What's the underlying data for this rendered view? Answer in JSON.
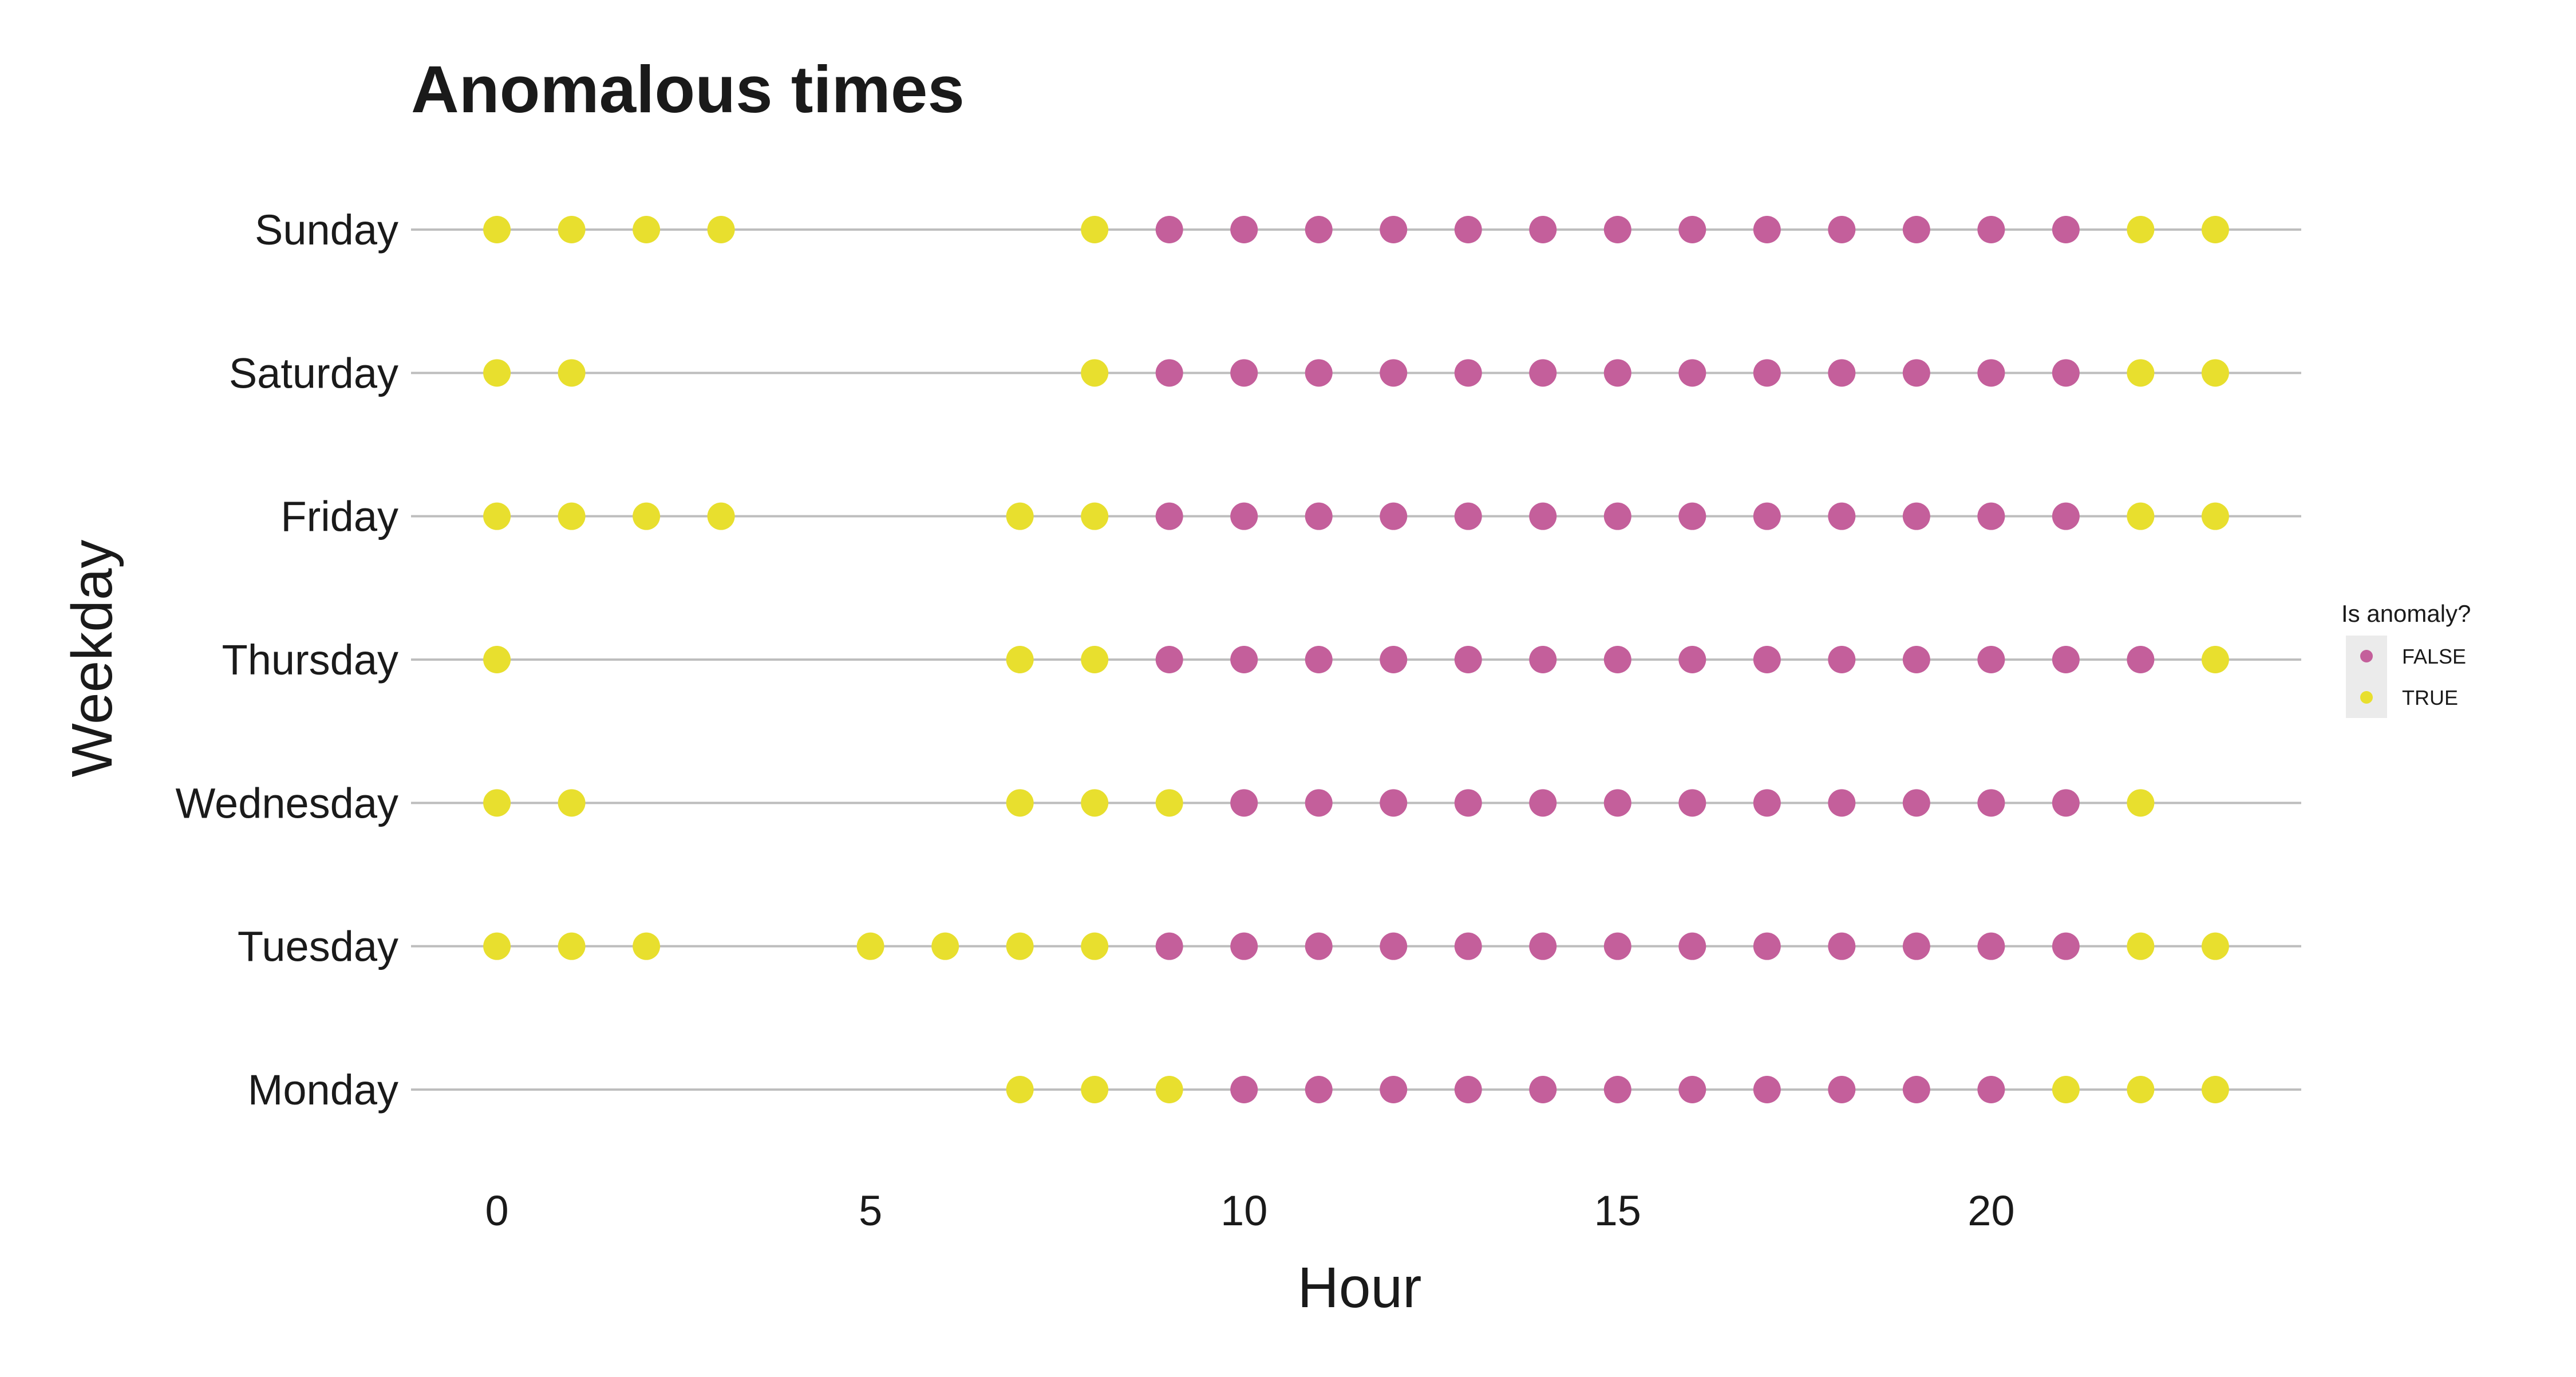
{
  "chart_data": {
    "type": "scatter",
    "title": "Anomalous times",
    "xlabel": "Hour",
    "ylabel": "Weekday",
    "xlim": [
      -1.15,
      24.15
    ],
    "x_ticks": [
      0,
      5,
      10,
      15,
      20
    ],
    "categories": [
      "Monday",
      "Tuesday",
      "Wednesday",
      "Thursday",
      "Friday",
      "Saturday",
      "Sunday"
    ],
    "grid": "horizontal",
    "legend": {
      "title": "Is anomaly?",
      "placement": "right",
      "entries": [
        {
          "label": "FALSE",
          "color": "#c45f9b"
        },
        {
          "label": "TRUE",
          "color": "#e8df2e"
        }
      ]
    },
    "series": [
      {
        "name": "FALSE",
        "color": "#c45f9b",
        "points": {
          "Monday": [
            10,
            11,
            12,
            13,
            14,
            15,
            16,
            17,
            18,
            19,
            20
          ],
          "Tuesday": [
            9,
            10,
            11,
            12,
            13,
            14,
            15,
            16,
            17,
            18,
            19,
            20,
            21
          ],
          "Wednesday": [
            10,
            11,
            12,
            13,
            14,
            15,
            16,
            17,
            18,
            19,
            20,
            21
          ],
          "Thursday": [
            9,
            10,
            11,
            12,
            13,
            14,
            15,
            16,
            17,
            18,
            19,
            20,
            21,
            22
          ],
          "Friday": [
            9,
            10,
            11,
            12,
            13,
            14,
            15,
            16,
            17,
            18,
            19,
            20,
            21
          ],
          "Saturday": [
            9,
            10,
            11,
            12,
            13,
            14,
            15,
            16,
            17,
            18,
            19,
            20,
            21
          ],
          "Sunday": [
            9,
            10,
            11,
            12,
            13,
            14,
            15,
            16,
            17,
            18,
            19,
            20,
            21
          ]
        }
      },
      {
        "name": "TRUE",
        "color": "#e8df2e",
        "points": {
          "Monday": [
            7,
            8,
            9,
            21,
            22,
            23
          ],
          "Tuesday": [
            0,
            1,
            2,
            5,
            6,
            7,
            8,
            22,
            23
          ],
          "Wednesday": [
            0,
            1,
            7,
            8,
            9,
            22
          ],
          "Thursday": [
            0,
            7,
            8,
            23
          ],
          "Friday": [
            0,
            1,
            2,
            3,
            7,
            8,
            22,
            23
          ],
          "Saturday": [
            0,
            1,
            8,
            22,
            23
          ],
          "Sunday": [
            0,
            1,
            2,
            3,
            8,
            22,
            23
          ]
        }
      }
    ]
  }
}
